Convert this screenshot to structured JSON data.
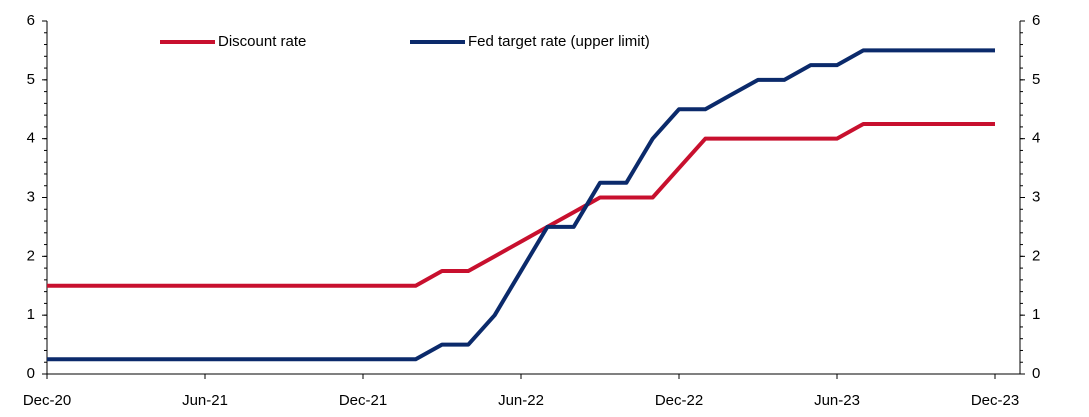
{
  "chart_data": {
    "type": "line",
    "categories": [
      "Dec-20",
      null,
      null,
      null,
      null,
      null,
      "Jun-21",
      null,
      null,
      null,
      null,
      null,
      "Dec-21",
      null,
      null,
      null,
      null,
      null,
      "Jun-22",
      null,
      null,
      null,
      null,
      null,
      "Dec-22",
      null,
      null,
      null,
      null,
      null,
      "Jun-23",
      null,
      null,
      null,
      null,
      null,
      "Dec-23"
    ],
    "series": [
      {
        "name": "Discount rate",
        "color": "#c8102e",
        "values": [
          1.5,
          1.5,
          1.5,
          1.5,
          1.5,
          1.5,
          1.5,
          1.5,
          1.5,
          1.5,
          1.5,
          1.5,
          1.5,
          1.5,
          1.5,
          1.75,
          1.75,
          2.0,
          2.25,
          2.5,
          2.75,
          3.0,
          3.0,
          3.0,
          3.5,
          4.0,
          4.0,
          4.0,
          4.0,
          4.0,
          4.0,
          4.25,
          4.25,
          4.25,
          4.25,
          4.25,
          4.25
        ]
      },
      {
        "name": "Fed target rate (upper limit)",
        "color": "#0b2a6b",
        "values": [
          0.25,
          0.25,
          0.25,
          0.25,
          0.25,
          0.25,
          0.25,
          0.25,
          0.25,
          0.25,
          0.25,
          0.25,
          0.25,
          0.25,
          0.25,
          0.5,
          0.5,
          1.0,
          1.75,
          2.5,
          2.5,
          3.25,
          3.25,
          4.0,
          4.5,
          4.5,
          4.75,
          5.0,
          5.0,
          5.25,
          5.25,
          5.5,
          5.5,
          5.5,
          5.5,
          5.5,
          5.5
        ]
      }
    ],
    "ylim": [
      0,
      6
    ],
    "yticks": [
      0,
      1,
      2,
      3,
      4,
      5,
      6
    ],
    "y2lim": [
      0,
      6
    ],
    "y2ticks": [
      0,
      1,
      2,
      3,
      4,
      5,
      6
    ],
    "legend": "top"
  }
}
